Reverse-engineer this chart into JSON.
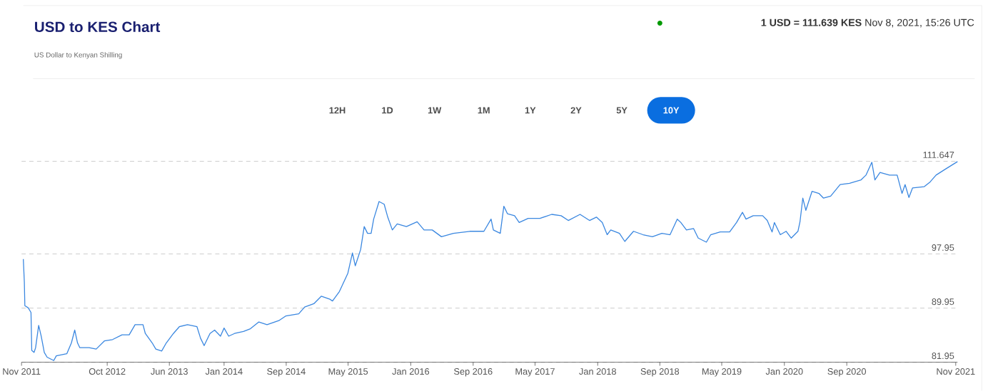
{
  "chart_data": {
    "type": "line",
    "title": "USD to KES Chart",
    "subtitle": "US Dollar to Kenyan Shilling",
    "annotations": [
      "**1 USD = 111.639 KES** Nov 8, 2021, 15:26 UTC",
      "12H",
      "1D",
      "1W",
      "1M",
      "1Y",
      "2Y",
      "5Y",
      "10Y"
    ],
    "xlim": [
      "2011-11",
      "2021-11-08"
    ],
    "xticks": [
      {
        "value": "2011-11",
        "label": "Nov 2011"
      },
      {
        "value": "2012-10",
        "label": "Oct 2012"
      },
      {
        "value": "2013-06",
        "label": "Jun 2013"
      },
      {
        "value": "2014-01",
        "label": "Jan 2014"
      },
      {
        "value": "2014-09",
        "label": "Sep 2014"
      },
      {
        "value": "2015-05",
        "label": "May 2015"
      },
      {
        "value": "2016-01",
        "label": "Jan 2016"
      },
      {
        "value": "2016-09",
        "label": "Sep 2016"
      },
      {
        "value": "2017-05",
        "label": "May 2017"
      },
      {
        "value": "2018-01",
        "label": "Jan 2018"
      },
      {
        "value": "2018-09",
        "label": "Sep 2018"
      },
      {
        "value": "2019-05",
        "label": "May 2019"
      },
      {
        "value": "2020-01",
        "label": "Jan 2020"
      },
      {
        "value": "2020-09",
        "label": "Sep 2020"
      },
      {
        "value": "2021-11",
        "label": "Nov 2021"
      }
    ],
    "ylim": [
      81.95,
      111.647
    ],
    "yticks": [
      81.95,
      89.95,
      97.95,
      111.647
    ],
    "grid": "y",
    "marker": "none",
    "line_style": "solid",
    "x": [
      "2011-11-08",
      "2011-11-12",
      "2011-11-14",
      "2011-11-27",
      "2011-12-08",
      "2011-12-11",
      "2011-12-20",
      "2011-12-26",
      "2012-01-07",
      "2012-01-17",
      "2012-01-29",
      "2012-02-09",
      "2012-03-06",
      "2012-03-16",
      "2012-04-26",
      "2012-05-14",
      "2012-05-27",
      "2012-06-07",
      "2012-06-16",
      "2012-07-22",
      "2012-08-19",
      "2012-09-20",
      "2012-10-22",
      "2012-11-28",
      "2012-12-26",
      "2013-01-18",
      "2013-02-18",
      "2013-02-27",
      "2013-03-26",
      "2013-04-09",
      "2013-05-02",
      "2013-05-20",
      "2013-06-17",
      "2013-07-10",
      "2013-08-11",
      "2013-09-17",
      "2013-10-01",
      "2013-10-15",
      "2013-11-07",
      "2013-11-25",
      "2013-12-18",
      "2014-01-01",
      "2014-01-19",
      "2014-02-11",
      "2014-03-18",
      "2014-04-14",
      "2014-05-17",
      "2014-06-18",
      "2014-08-03",
      "2014-08-31",
      "2014-10-20",
      "2014-11-12",
      "2014-12-18",
      "2015-01-16",
      "2015-02-17",
      "2015-03-01",
      "2015-03-28",
      "2015-04-30",
      "2015-05-18",
      "2015-05-29",
      "2015-06-19",
      "2015-07-03",
      "2015-07-16",
      "2015-07-30",
      "2015-08-09",
      "2015-08-30",
      "2015-09-19",
      "2015-10-03",
      "2015-10-21",
      "2015-11-09",
      "2015-12-15",
      "2016-01-26",
      "2016-02-22",
      "2016-03-25",
      "2016-04-30",
      "2016-06-16",
      "2016-08-19",
      "2016-10-13",
      "2016-11-10",
      "2016-11-19",
      "2016-12-16",
      "2016-12-30",
      "2017-01-13",
      "2017-02-10",
      "2017-02-28",
      "2017-04-04",
      "2017-05-20",
      "2017-07-05",
      "2017-08-11",
      "2017-09-08",
      "2017-10-24",
      "2017-11-30",
      "2017-12-27",
      "2018-01-19",
      "2018-02-07",
      "2018-02-21",
      "2018-03-27",
      "2018-04-17",
      "2018-05-21",
      "2018-06-27",
      "2018-08-03",
      "2018-09-09",
      "2018-10-11",
      "2018-11-08",
      "2018-11-22",
      "2018-12-14",
      "2019-01-11",
      "2019-01-29",
      "2019-03-02",
      "2019-03-19",
      "2019-04-25",
      "2019-06-01",
      "2019-06-28",
      "2019-07-21",
      "2019-08-04",
      "2019-09-01",
      "2019-10-08",
      "2019-10-26",
      "2019-11-14",
      "2019-11-23",
      "2019-12-16",
      "2020-01-08",
      "2020-01-28",
      "2020-02-23",
      "2020-03-02",
      "2020-03-13",
      "2020-03-25",
      "2020-04-18",
      "2020-05-15",
      "2020-06-02",
      "2020-06-30",
      "2020-08-06",
      "2020-09-12",
      "2020-10-27",
      "2020-11-15",
      "2020-12-08",
      "2020-12-20",
      "2021-01-09",
      "2021-02-15",
      "2021-03-17",
      "2021-04-05",
      "2021-04-17",
      "2021-05-02",
      "2021-05-16",
      "2021-07-01",
      "2021-07-24",
      "2021-08-16",
      "2021-09-22",
      "2021-11-08"
    ],
    "series": [
      {
        "color": "#3a87e0",
        "values": [
          97.2,
          93.8,
          90.3,
          90.0,
          89.3,
          83.7,
          83.4,
          84.1,
          87.4,
          85.8,
          83.4,
          82.7,
          82.2,
          82.9,
          83.2,
          84.8,
          86.7,
          84.8,
          84.1,
          84.1,
          83.9,
          85.1,
          85.3,
          86.0,
          86.0,
          87.5,
          87.5,
          86.2,
          84.8,
          83.9,
          83.6,
          84.8,
          86.2,
          87.2,
          87.5,
          87.2,
          85.5,
          84.4,
          86.2,
          86.7,
          85.8,
          87.0,
          85.8,
          86.2,
          86.5,
          86.9,
          87.9,
          87.5,
          88.1,
          88.8,
          89.1,
          90.1,
          90.6,
          91.7,
          91.3,
          91.0,
          92.4,
          95.1,
          98.1,
          96.2,
          98.6,
          102.0,
          101.0,
          101.0,
          103.1,
          105.7,
          105.3,
          103.4,
          101.5,
          102.4,
          102.0,
          102.7,
          101.5,
          101.5,
          100.5,
          101.0,
          101.3,
          101.3,
          103.1,
          101.5,
          101.0,
          105.0,
          103.9,
          103.6,
          102.6,
          103.2,
          103.2,
          103.8,
          103.6,
          102.9,
          103.8,
          102.9,
          103.4,
          102.6,
          100.8,
          101.5,
          101.0,
          99.8,
          101.3,
          100.8,
          100.5,
          101.0,
          100.8,
          103.1,
          102.6,
          101.5,
          101.7,
          100.3,
          99.7,
          100.8,
          101.2,
          101.2,
          102.6,
          104.1,
          103.1,
          103.6,
          103.6,
          102.9,
          101.2,
          102.6,
          100.8,
          101.3,
          100.3,
          101.3,
          102.7,
          106.2,
          104.4,
          107.2,
          106.9,
          106.2,
          106.5,
          108.2,
          108.4,
          108.9,
          109.6,
          111.5,
          108.9,
          110.0,
          109.6,
          109.6,
          106.9,
          108.2,
          106.3,
          107.7,
          107.9,
          108.6,
          109.6,
          110.5,
          111.6
        ]
      }
    ]
  }
}
